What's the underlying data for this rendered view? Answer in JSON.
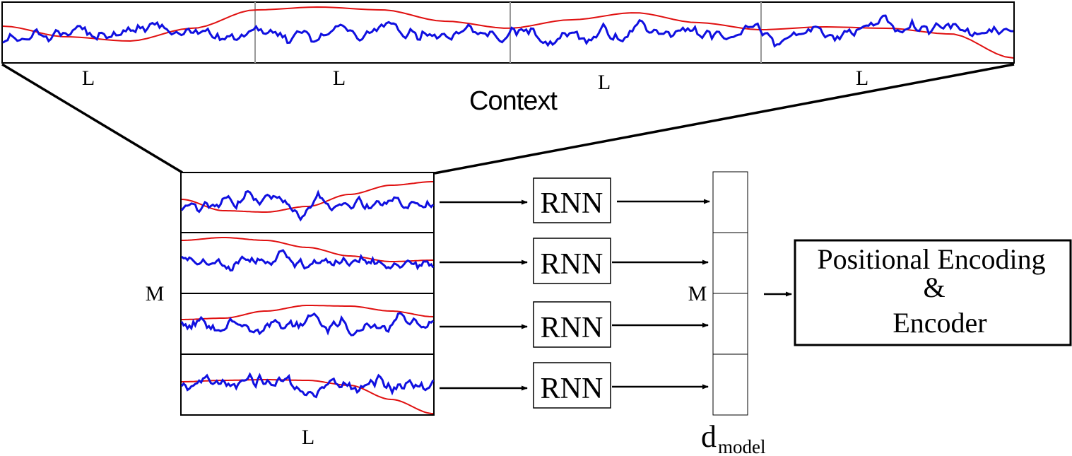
{
  "labels": {
    "segment_length": "L",
    "context": "Context",
    "num_segments": "M",
    "rnn": "RNN",
    "dmodel_main": "d",
    "dmodel_sub": "model",
    "encoder_line1": "Positional Encoding",
    "encoder_line2": "&",
    "encoder_line3": "Encoder"
  },
  "colors": {
    "signal": "#1010e0",
    "trend": "#e01010",
    "stroke": "#000000",
    "divider": "#999999"
  },
  "context_segment_count": 4,
  "rnn_count": 4,
  "dmodel_cell_count": 4
}
